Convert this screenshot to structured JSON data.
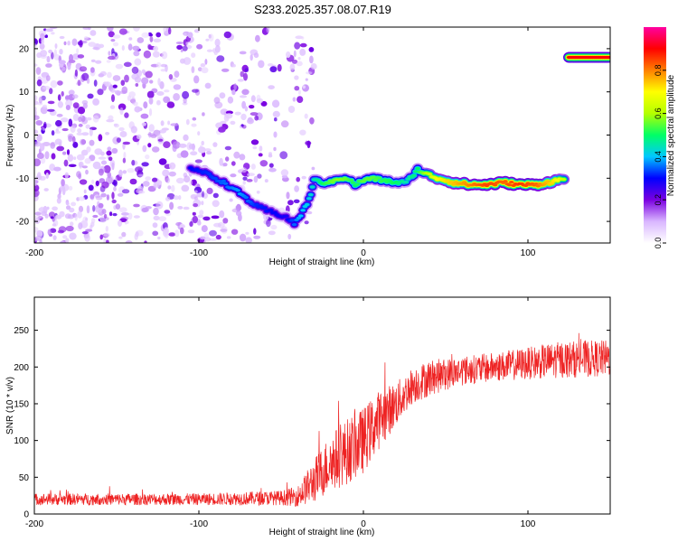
{
  "title": "S233.2025.357.08.07.R19",
  "chart_data": [
    {
      "type": "heatmap",
      "xlabel": "Height of straight line (km)",
      "ylabel": "Frequency (Hz)",
      "xlim": [
        -200,
        150
      ],
      "ylim": [
        -25,
        25
      ],
      "xticks": [
        -200,
        -100,
        0,
        100
      ],
      "yticks": [
        -20,
        -10,
        0,
        10,
        20
      ],
      "colorbar": {
        "label": "Normalized spectral amplitude",
        "range": [
          0.0,
          1.0
        ],
        "ticks": [
          0.0,
          0.2,
          0.4,
          0.6,
          0.8
        ],
        "tick_labels": [
          "0.0",
          "0.2",
          "0.4",
          "0.6",
          "0.8"
        ],
        "colors": [
          "#ffffff",
          "#d9b6ff",
          "#7a00e0",
          "#0000ff",
          "#00c8ff",
          "#00ff66",
          "#b4ff00",
          "#ffff00",
          "#ff8000",
          "#ff0000",
          "#ff00a0"
        ]
      },
      "noise_region_km": [
        -200,
        -40
      ],
      "ridge": [
        {
          "x": -105,
          "y": -7.5,
          "a": 0.3
        },
        {
          "x": -95,
          "y": -9.0,
          "a": 0.32
        },
        {
          "x": -85,
          "y": -11.0,
          "a": 0.35
        },
        {
          "x": -75,
          "y": -13.5,
          "a": 0.38
        },
        {
          "x": -65,
          "y": -16.5,
          "a": 0.32
        },
        {
          "x": -55,
          "y": -18.0,
          "a": 0.3
        },
        {
          "x": -47,
          "y": -19.0,
          "a": 0.28
        },
        {
          "x": -42,
          "y": -20.5,
          "a": 0.35
        },
        {
          "x": -38,
          "y": -18.5,
          "a": 0.4
        },
        {
          "x": -33,
          "y": -15.0,
          "a": 0.42
        },
        {
          "x": -30,
          "y": -10.5,
          "a": 0.45
        },
        {
          "x": -25,
          "y": -11.0,
          "a": 0.5
        },
        {
          "x": -20,
          "y": -11.0,
          "a": 0.55
        },
        {
          "x": -15,
          "y": -10.0,
          "a": 0.58
        },
        {
          "x": -10,
          "y": -10.0,
          "a": 0.55
        },
        {
          "x": -5,
          "y": -11.5,
          "a": 0.5
        },
        {
          "x": 0,
          "y": -10.5,
          "a": 0.55
        },
        {
          "x": 5,
          "y": -10.0,
          "a": 0.55
        },
        {
          "x": 12,
          "y": -10.5,
          "a": 0.52
        },
        {
          "x": 20,
          "y": -11.0,
          "a": 0.5
        },
        {
          "x": 26,
          "y": -11.0,
          "a": 0.45
        },
        {
          "x": 33,
          "y": -8.0,
          "a": 0.5
        },
        {
          "x": 38,
          "y": -9.0,
          "a": 0.6
        },
        {
          "x": 45,
          "y": -10.0,
          "a": 0.7
        },
        {
          "x": 55,
          "y": -11.0,
          "a": 0.75
        },
        {
          "x": 65,
          "y": -11.5,
          "a": 0.8
        },
        {
          "x": 75,
          "y": -11.5,
          "a": 0.85
        },
        {
          "x": 85,
          "y": -11.0,
          "a": 0.82
        },
        {
          "x": 95,
          "y": -11.5,
          "a": 0.86
        },
        {
          "x": 105,
          "y": -11.5,
          "a": 0.82
        },
        {
          "x": 112,
          "y": -11.0,
          "a": 0.75
        },
        {
          "x": 118,
          "y": -10.5,
          "a": 0.7
        },
        {
          "x": 123,
          "y": -10.0,
          "a": 0.6
        }
      ],
      "top_right_feature": {
        "x_range": [
          125,
          150
        ],
        "y": 18,
        "a": 0.9
      }
    },
    {
      "type": "line",
      "xlabel": "Height of straight line (km)",
      "ylabel": "SNR (10 * v/v)",
      "xlim": [
        -200,
        150
      ],
      "ylim": [
        0,
        295
      ],
      "xticks": [
        -200,
        -100,
        0,
        100
      ],
      "yticks": [
        0,
        50,
        100,
        150,
        200,
        250
      ],
      "color": "#ee2222",
      "series": [
        {
          "name": "SNR",
          "x": [
            -200,
            -150,
            -100,
            -50,
            -40,
            -30,
            -20,
            -10,
            0,
            10,
            20,
            30,
            40,
            50,
            60,
            80,
            100,
            120,
            150
          ],
          "y": [
            20,
            20,
            20,
            22,
            24,
            45,
            70,
            85,
            100,
            130,
            150,
            175,
            185,
            190,
            195,
            200,
            205,
            210,
            212
          ],
          "noise_amplitude": [
            8,
            8,
            8,
            10,
            14,
            30,
            40,
            45,
            45,
            40,
            30,
            25,
            25,
            22,
            20,
            20,
            22,
            25,
            25
          ]
        }
      ]
    }
  ]
}
